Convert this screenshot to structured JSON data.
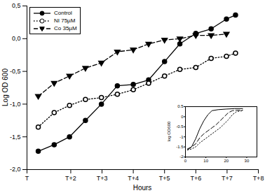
{
  "chart_data": [
    {
      "type": "line",
      "x_label": "Hours",
      "y_label": "Log OD 600",
      "legend": "upper left",
      "xlim": [
        0.6,
        8
      ],
      "xticks": [
        {
          "value": 0.6,
          "label": "T"
        },
        {
          "value": 2,
          "label": "T+2"
        },
        {
          "value": 3,
          "label": "T+3"
        },
        {
          "value": 4,
          "label": "T+4"
        },
        {
          "value": 5,
          "label": "T+5"
        },
        {
          "value": 6,
          "label": "T+6"
        },
        {
          "value": 7,
          "label": "T+7"
        },
        {
          "value": 8,
          "label": "T+8"
        }
      ],
      "ylim": [
        -2,
        0.5
      ],
      "yticks": [
        {
          "value": -2,
          "label": "-2,0"
        },
        {
          "value": -1.5,
          "label": "-1,5"
        },
        {
          "value": -1,
          "label": "-1,0"
        },
        {
          "value": -0.5,
          "label": "-0,5"
        },
        {
          "value": 0,
          "label": "0,0"
        },
        {
          "value": 0.5,
          "label": "0,5"
        }
      ],
      "series": [
        {
          "name": "Control",
          "color": "#000000",
          "marker": "circle",
          "line_style": "solid",
          "x": [
            0.96,
            1.47,
            1.96,
            2.47,
            2.98,
            3.49,
            4.0,
            4.49,
            5.0,
            5.49,
            6.0,
            6.49,
            6.98,
            7.27
          ],
          "values": [
            -1.72,
            -1.62,
            -1.5,
            -1.25,
            -1.0,
            -0.72,
            -0.7,
            -0.63,
            -0.35,
            -0.08,
            0.08,
            0.15,
            0.3,
            0.36
          ]
        },
        {
          "name": "NI 75µM",
          "color": "#000000",
          "marker": "open_circle",
          "line_style": "dotted",
          "x": [
            0.96,
            1.47,
            1.96,
            2.47,
            2.98,
            3.49,
            4.0,
            4.49,
            5.0,
            5.49,
            6.0,
            6.49,
            6.98,
            7.27
          ],
          "values": [
            -1.35,
            -1.13,
            -1.02,
            -0.93,
            -0.9,
            -0.85,
            -0.78,
            -0.68,
            -0.57,
            -0.47,
            -0.44,
            -0.3,
            -0.27,
            -0.22
          ]
        },
        {
          "name": "Co 35µM",
          "color": "#000000",
          "marker": "triangle_down",
          "line_style": "dashed",
          "x": [
            0.96,
            1.47,
            1.96,
            2.47,
            2.98,
            3.49,
            4.0,
            4.49,
            5.0,
            5.49,
            6.0,
            6.49,
            6.98
          ],
          "values": [
            -0.88,
            -0.68,
            -0.57,
            -0.45,
            -0.37,
            -0.2,
            -0.17,
            -0.08,
            -0.02,
            0.0,
            0.05,
            0.05,
            0.07
          ]
        }
      ]
    },
    {
      "type": "line",
      "y_label": "log OD600",
      "xlim": [
        0,
        35
      ],
      "xticks": [
        0,
        10,
        20,
        30
      ],
      "ylim": [
        -2,
        0.5
      ],
      "yticks": [
        -2,
        -1.5,
        -1,
        -0.5,
        0,
        0.5
      ],
      "series": [
        {
          "color": "#000000",
          "line_style": "solid",
          "x": [
            1,
            3,
            5,
            7,
            9,
            11,
            13,
            16,
            20,
            24,
            28
          ],
          "values": [
            -1.65,
            -1.5,
            -1.1,
            -0.6,
            -0.2,
            0.1,
            0.3,
            0.35,
            0.38,
            0.4,
            0.4
          ]
        },
        {
          "color": "#000000",
          "line_style": "dashed",
          "x": [
            1,
            3,
            5,
            7,
            9,
            11,
            13,
            15,
            17,
            19,
            21,
            23,
            25,
            28
          ],
          "values": [
            -1.6,
            -1.5,
            -1.35,
            -1.05,
            -0.85,
            -0.7,
            -0.55,
            -0.4,
            -0.2,
            0.0,
            0.2,
            0.3,
            0.32,
            0.32
          ]
        },
        {
          "color": "#000000",
          "line_style": "dotted",
          "x": [
            1,
            3,
            5,
            7,
            9,
            11,
            13,
            15,
            17,
            19,
            21,
            23,
            25,
            28
          ],
          "values": [
            -1.65,
            -1.6,
            -1.5,
            -1.3,
            -1.15,
            -1.0,
            -0.85,
            -0.7,
            -0.55,
            -0.35,
            -0.15,
            0.1,
            0.25,
            0.3
          ]
        }
      ]
    }
  ]
}
